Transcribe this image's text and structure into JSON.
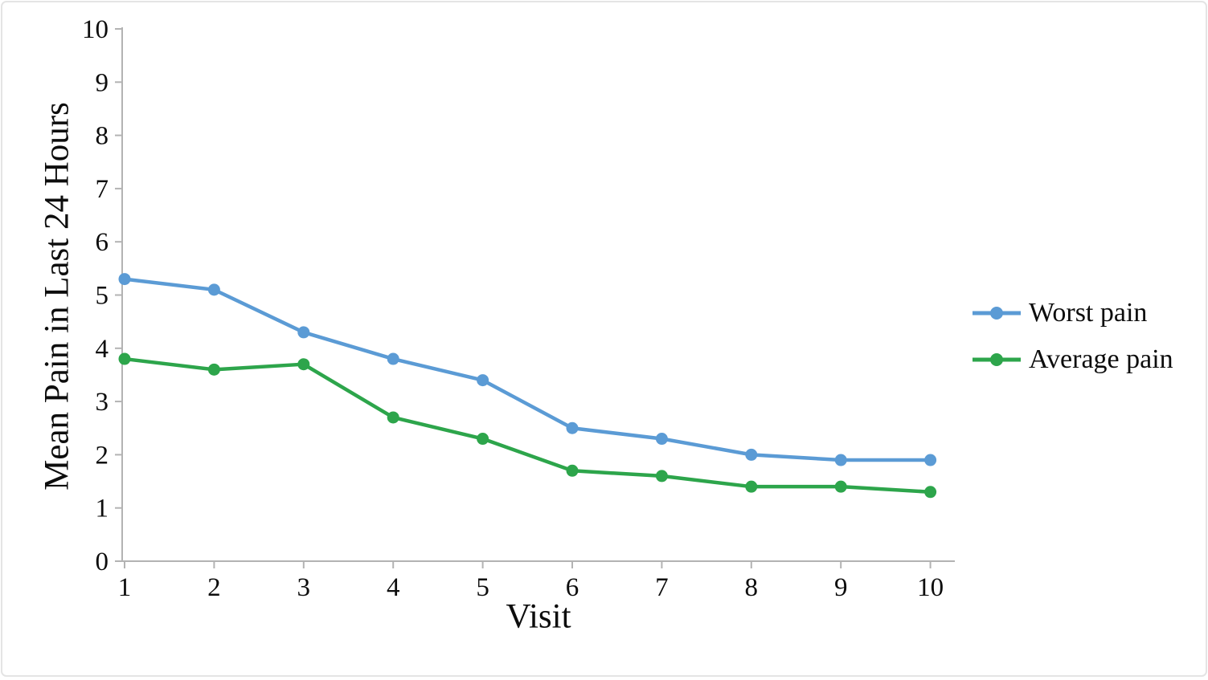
{
  "chart_data": {
    "type": "line",
    "title": "",
    "xlabel": "Visit",
    "ylabel": "Mean Pain in Last 24 Hours",
    "x": [
      1,
      2,
      3,
      4,
      5,
      6,
      7,
      8,
      9,
      10
    ],
    "series": [
      {
        "name": "Worst pain",
        "color": "#5b9bd5",
        "marker": "circle",
        "values": [
          5.3,
          5.1,
          4.3,
          3.8,
          3.4,
          2.5,
          2.3,
          2.0,
          1.9,
          1.9
        ]
      },
      {
        "name": "Average pain",
        "color": "#2da54b",
        "marker": "circle",
        "values": [
          3.8,
          3.6,
          3.7,
          2.7,
          2.3,
          1.7,
          1.6,
          1.4,
          1.4,
          1.3
        ]
      }
    ],
    "ylim": [
      0,
      10
    ],
    "yticks": [
      0,
      1,
      2,
      3,
      4,
      5,
      6,
      7,
      8,
      9,
      10
    ],
    "grid": false,
    "legend_position": "right",
    "axis_color": "#b3b3b3",
    "text_color": "#0d0d0d"
  }
}
